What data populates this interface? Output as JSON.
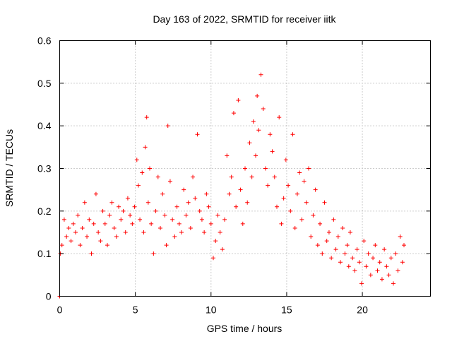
{
  "chart_data": {
    "type": "scatter",
    "title": "Day 163 of 2022, SRMTID for receiver iitk",
    "xlabel": "GPS time / hours",
    "ylabel": "SRMTID / TECUs",
    "xlim": [
      0,
      24.5
    ],
    "ylim": [
      0,
      0.6
    ],
    "xticks": [
      0,
      5,
      10,
      15,
      20
    ],
    "yticks": [
      0,
      0.1,
      0.2,
      0.3,
      0.4,
      0.5,
      0.6
    ],
    "ytick_labels": [
      "0",
      "0.1",
      "0.2",
      "0.3",
      "0.4",
      "0.5",
      "0.6"
    ],
    "grid": true,
    "marker": "+",
    "color": "#ff0000",
    "series": [
      {
        "name": "SRMTID",
        "x": [
          0.0,
          0.05,
          0.15,
          0.3,
          0.45,
          0.6,
          0.75,
          0.9,
          1.05,
          1.2,
          1.35,
          1.5,
          1.65,
          1.8,
          1.95,
          2.1,
          2.25,
          2.4,
          2.55,
          2.7,
          2.85,
          3.0,
          3.15,
          3.3,
          3.45,
          3.6,
          3.75,
          3.9,
          4.05,
          4.2,
          4.35,
          4.5,
          4.65,
          4.8,
          4.95,
          5.1,
          5.2,
          5.3,
          5.45,
          5.55,
          5.65,
          5.75,
          5.85,
          5.95,
          6.05,
          6.2,
          6.35,
          6.5,
          6.65,
          6.8,
          6.95,
          7.05,
          7.15,
          7.3,
          7.45,
          7.6,
          7.75,
          7.9,
          8.05,
          8.2,
          8.35,
          8.5,
          8.65,
          8.8,
          8.95,
          9.1,
          9.25,
          9.4,
          9.55,
          9.7,
          9.85,
          10.0,
          10.15,
          10.3,
          10.45,
          10.6,
          10.75,
          10.9,
          11.05,
          11.2,
          11.35,
          11.5,
          11.65,
          11.8,
          11.95,
          12.1,
          12.25,
          12.4,
          12.55,
          12.7,
          12.8,
          12.95,
          13.05,
          13.15,
          13.3,
          13.45,
          13.6,
          13.75,
          13.9,
          14.05,
          14.2,
          14.35,
          14.5,
          14.65,
          14.8,
          14.95,
          15.1,
          15.25,
          15.4,
          15.55,
          15.7,
          15.85,
          16.0,
          16.15,
          16.3,
          16.45,
          16.6,
          16.75,
          16.9,
          17.05,
          17.2,
          17.35,
          17.5,
          17.65,
          17.8,
          17.95,
          18.1,
          18.25,
          18.4,
          18.55,
          18.7,
          18.85,
          19.0,
          19.1,
          19.2,
          19.35,
          19.5,
          19.65,
          19.8,
          19.95,
          20.1,
          20.25,
          20.4,
          20.55,
          20.7,
          20.85,
          21.0,
          21.15,
          21.3,
          21.45,
          21.6,
          21.75,
          21.9,
          22.05,
          22.2,
          22.35,
          22.5,
          22.65,
          22.75
        ],
        "y": [
          0.0,
          0.1,
          0.12,
          0.18,
          0.14,
          0.16,
          0.13,
          0.17,
          0.15,
          0.19,
          0.12,
          0.16,
          0.22,
          0.14,
          0.18,
          0.1,
          0.17,
          0.24,
          0.15,
          0.13,
          0.2,
          0.17,
          0.12,
          0.19,
          0.22,
          0.16,
          0.14,
          0.21,
          0.18,
          0.2,
          0.15,
          0.23,
          0.19,
          0.17,
          0.21,
          0.32,
          0.26,
          0.18,
          0.29,
          0.15,
          0.35,
          0.42,
          0.22,
          0.3,
          0.17,
          0.1,
          0.2,
          0.28,
          0.16,
          0.24,
          0.19,
          0.12,
          0.4,
          0.27,
          0.18,
          0.14,
          0.21,
          0.17,
          0.15,
          0.25,
          0.19,
          0.22,
          0.16,
          0.28,
          0.23,
          0.38,
          0.2,
          0.18,
          0.15,
          0.24,
          0.21,
          0.17,
          0.09,
          0.13,
          0.19,
          0.15,
          0.11,
          0.18,
          0.33,
          0.24,
          0.28,
          0.43,
          0.21,
          0.46,
          0.25,
          0.17,
          0.3,
          0.22,
          0.36,
          0.28,
          0.41,
          0.33,
          0.47,
          0.39,
          0.52,
          0.44,
          0.3,
          0.26,
          0.38,
          0.34,
          0.28,
          0.21,
          0.42,
          0.17,
          0.23,
          0.32,
          0.26,
          0.2,
          0.38,
          0.16,
          0.24,
          0.29,
          0.18,
          0.27,
          0.22,
          0.3,
          0.14,
          0.19,
          0.25,
          0.12,
          0.17,
          0.1,
          0.22,
          0.13,
          0.15,
          0.09,
          0.18,
          0.11,
          0.14,
          0.08,
          0.16,
          0.1,
          0.12,
          0.07,
          0.15,
          0.09,
          0.06,
          0.11,
          0.08,
          0.03,
          0.13,
          0.07,
          0.1,
          0.05,
          0.09,
          0.12,
          0.06,
          0.08,
          0.04,
          0.11,
          0.07,
          0.05,
          0.09,
          0.03,
          0.1,
          0.06,
          0.14,
          0.08,
          0.12
        ]
      }
    ]
  }
}
